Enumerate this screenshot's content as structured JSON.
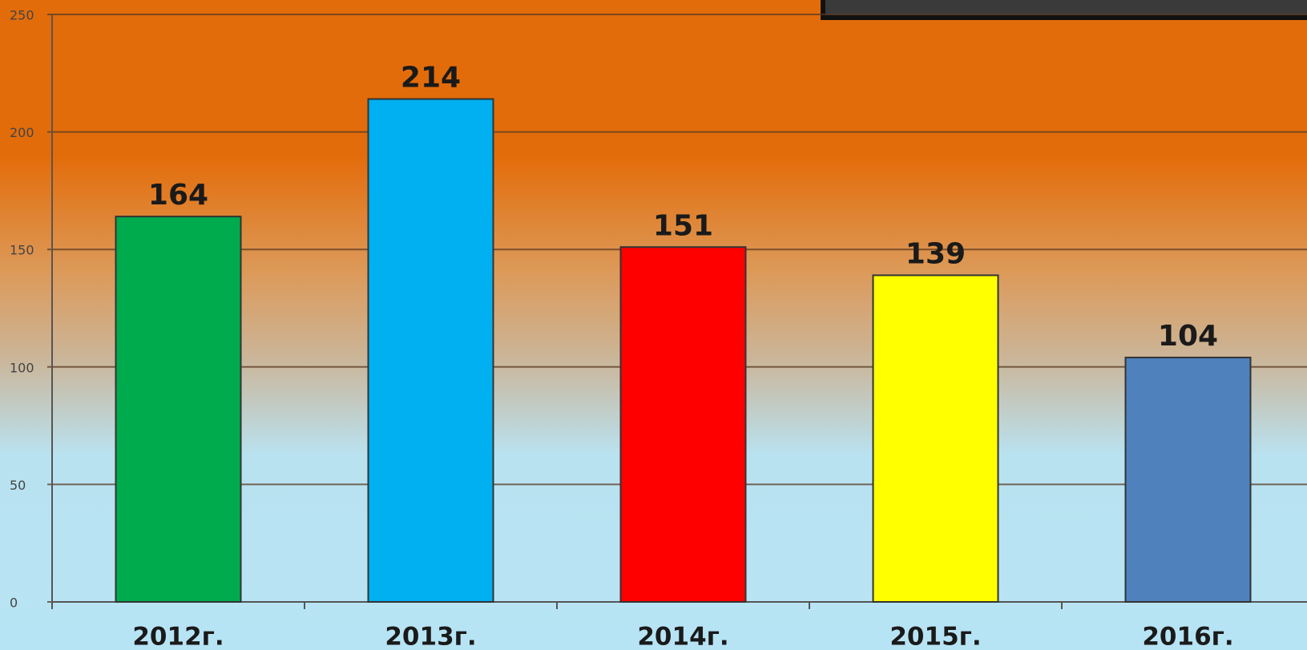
{
  "chart_data": {
    "type": "bar",
    "categories": [
      "2012г.",
      "2013г.",
      "2014г.",
      "2015г.",
      "2016г."
    ],
    "values": [
      164,
      214,
      151,
      139,
      104
    ],
    "colors": [
      "#00ab4e",
      "#00b0f0",
      "#ff0000",
      "#ffff00",
      "#4f81bd"
    ],
    "ylim": [
      0,
      250
    ],
    "yticks": [
      0,
      50,
      100,
      150,
      200,
      250
    ],
    "grid": true
  }
}
